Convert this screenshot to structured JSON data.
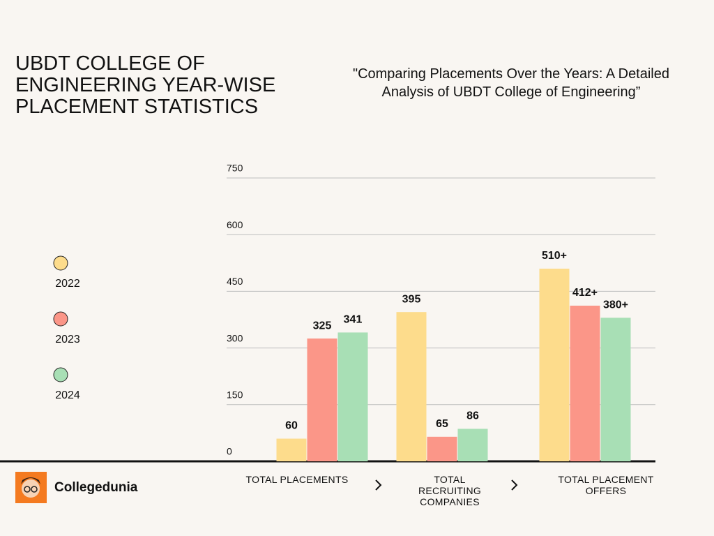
{
  "chart_data": {
    "type": "bar",
    "title": "UBDT COLLEGE OF ENGINEERING YEAR-WISE PLACEMENT STATISTICS",
    "subtitle": "\"Comparing Placements Over the Years: A Detailed Analysis of UBDT College of Engineering”",
    "categories": [
      "TOTAL PLACEMENTS",
      "TOTAL RECRUITING COMPANIES",
      "TOTAL PLACEMENT OFFERS"
    ],
    "series": [
      {
        "name": "2022",
        "color": "#fddc8c",
        "values": [
          60,
          395,
          510
        ],
        "value_labels": [
          "60",
          "395",
          "510+"
        ]
      },
      {
        "name": "2023",
        "color": "#fb9688",
        "values": [
          325,
          65,
          412
        ],
        "value_labels": [
          "325",
          "65",
          "412+"
        ]
      },
      {
        "name": "2024",
        "color": "#a8dfb5",
        "values": [
          341,
          86,
          380
        ],
        "value_labels": [
          "341",
          "86",
          "380+"
        ]
      }
    ],
    "ylim": [
      0,
      750
    ],
    "yticks": [
      0,
      150,
      300,
      450,
      600,
      750
    ],
    "grid": true,
    "legend": "left"
  },
  "brand": "Collegedunia"
}
